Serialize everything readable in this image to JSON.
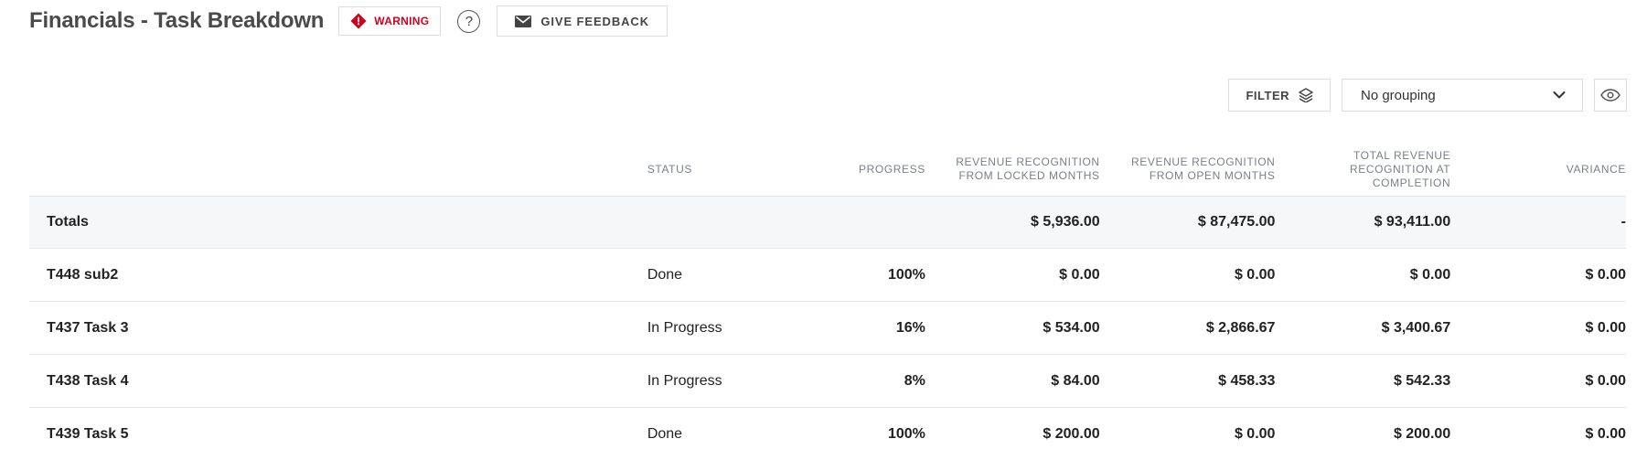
{
  "header": {
    "title": "Financials - Task Breakdown",
    "warning_label": "WARNING",
    "help_label": "?",
    "feedback_label": "GIVE FEEDBACK",
    "warning_color": "#d0021b"
  },
  "toolbar": {
    "filter_label": "FILTER",
    "grouping_selected": "No grouping",
    "grouping_icon": "chevron-down-icon",
    "visibility_icon": "eye-icon"
  },
  "table": {
    "headers": {
      "status": "STATUS",
      "progress": "PROGRESS",
      "locked": "REVENUE RECOGNITION FROM LOCKED MONTHS",
      "open": "REVENUE RECOGNITION FROM OPEN MONTHS",
      "total": "TOTAL REVENUE RECOGNITION AT COMPLETION",
      "variance": "VARIANCE"
    },
    "totals": {
      "name": "Totals",
      "status": "",
      "progress": "",
      "locked": "$ 5,936.00",
      "open": "$ 87,475.00",
      "total": "$ 93,411.00",
      "variance": "-"
    },
    "rows": [
      {
        "name": "T448 sub2",
        "status": "Done",
        "progress": "100%",
        "locked": "$ 0.00",
        "open": "$ 0.00",
        "total": "$ 0.00",
        "variance": "$ 0.00"
      },
      {
        "name": "T437 Task 3",
        "status": "In Progress",
        "progress": "16%",
        "locked": "$ 534.00",
        "open": "$ 2,866.67",
        "total": "$ 3,400.67",
        "variance": "$ 0.00"
      },
      {
        "name": "T438 Task 4",
        "status": "In Progress",
        "progress": "8%",
        "locked": "$ 84.00",
        "open": "$ 458.33",
        "total": "$ 542.33",
        "variance": "$ 0.00"
      },
      {
        "name": "T439 Task 5",
        "status": "Done",
        "progress": "100%",
        "locked": "$ 200.00",
        "open": "$ 0.00",
        "total": "$ 200.00",
        "variance": "$ 0.00"
      }
    ]
  }
}
